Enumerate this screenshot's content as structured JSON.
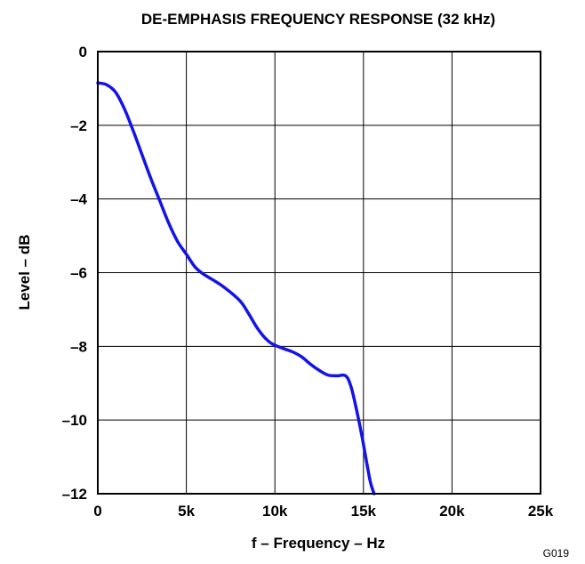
{
  "chart_data": {
    "type": "line",
    "title": "DE-EMPHASIS FREQUENCY RESPONSE (32 kHz)",
    "xlabel": "f – Frequency – Hz",
    "ylabel": "Level – dB",
    "xlim": [
      0,
      25000
    ],
    "ylim": [
      -12,
      0
    ],
    "x_ticks": [
      0,
      5000,
      10000,
      15000,
      20000,
      25000
    ],
    "x_tick_labels": [
      "0",
      "5k",
      "10k",
      "15k",
      "20k",
      "25k"
    ],
    "y_ticks": [
      0,
      -2,
      -4,
      -6,
      -8,
      -10,
      -12
    ],
    "y_tick_labels": [
      "0",
      "–2",
      "–4",
      "–6",
      "–8",
      "–10",
      "–12"
    ],
    "grid": true,
    "series_color": "#1414e6",
    "series": [
      {
        "x": [
          0,
          500,
          1000,
          1500,
          2000,
          2500,
          3000,
          3500,
          4000,
          4500,
          5000,
          5500,
          6000,
          7000,
          8000,
          8500,
          9000,
          9500,
          10000,
          11000,
          11500,
          12000,
          12500,
          13000,
          13500,
          14000,
          14300,
          14600,
          14900,
          15200,
          15400,
          15600
        ],
        "y": [
          -0.85,
          -0.9,
          -1.1,
          -1.55,
          -2.15,
          -2.8,
          -3.45,
          -4.05,
          -4.65,
          -5.15,
          -5.5,
          -5.85,
          -6.05,
          -6.35,
          -6.75,
          -7.1,
          -7.5,
          -7.8,
          -7.97,
          -8.15,
          -8.28,
          -8.48,
          -8.65,
          -8.78,
          -8.8,
          -8.8,
          -9.1,
          -9.7,
          -10.4,
          -11.2,
          -11.7,
          -12.0
        ]
      }
    ],
    "footnote": "G019"
  }
}
